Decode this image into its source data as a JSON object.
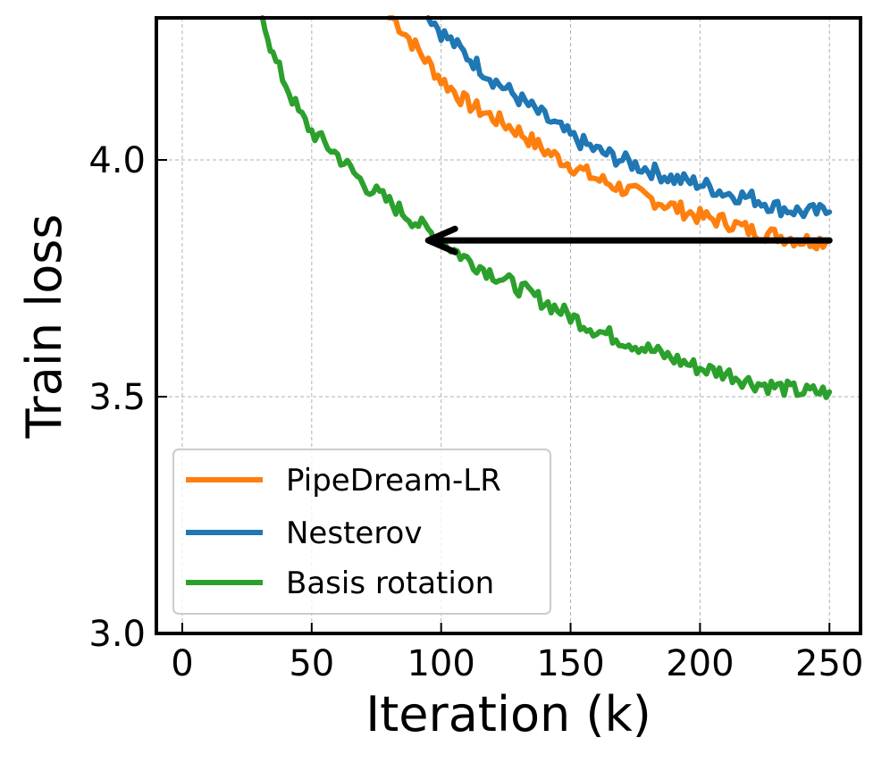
{
  "chart_data": {
    "type": "line",
    "xlabel": "Iteration (k)",
    "ylabel": "Train loss",
    "xlim": [
      -10,
      262
    ],
    "ylim": [
      3.0,
      4.3
    ],
    "xticks": [
      0,
      50,
      100,
      150,
      200,
      250
    ],
    "yticks": [
      3.0,
      3.5,
      4.0
    ],
    "xtick_labels": [
      "0",
      "50",
      "100",
      "150",
      "200",
      "250"
    ],
    "ytick_labels": [
      "3.0",
      "3.5",
      "4.0"
    ],
    "grid": true,
    "legend": "lower-left",
    "series": [
      {
        "name": "PipeDream-LR",
        "color": "#ff7f0e",
        "x": [
          80,
          90,
          100,
          110,
          120,
          130,
          140,
          150,
          160,
          170,
          180,
          190,
          200,
          210,
          220,
          230,
          240,
          250
        ],
        "y": [
          4.31,
          4.24,
          4.17,
          4.12,
          4.09,
          4.06,
          4.02,
          3.99,
          3.96,
          3.94,
          3.92,
          3.9,
          3.88,
          3.87,
          3.85,
          3.84,
          3.83,
          3.83
        ]
      },
      {
        "name": "Nesterov",
        "color": "#1f77b4",
        "x": [
          95,
          100,
          110,
          120,
          130,
          140,
          150,
          160,
          170,
          180,
          190,
          200,
          210,
          220,
          230,
          240,
          250
        ],
        "y": [
          4.31,
          4.27,
          4.22,
          4.17,
          4.13,
          4.09,
          4.05,
          4.02,
          4.0,
          3.98,
          3.96,
          3.95,
          3.93,
          3.92,
          3.9,
          3.89,
          3.89
        ]
      },
      {
        "name": "Basis rotation",
        "color": "#2ca02c",
        "x": [
          31,
          35,
          40,
          45,
          50,
          60,
          70,
          80,
          90,
          100,
          110,
          120,
          130,
          140,
          150,
          160,
          170,
          180,
          190,
          200,
          210,
          220,
          230,
          240,
          250
        ],
        "y": [
          4.31,
          4.22,
          4.16,
          4.1,
          4.06,
          4.01,
          3.95,
          3.91,
          3.87,
          3.83,
          3.79,
          3.76,
          3.73,
          3.7,
          3.67,
          3.64,
          3.62,
          3.6,
          3.58,
          3.56,
          3.55,
          3.53,
          3.52,
          3.51,
          3.51
        ]
      }
    ],
    "annotations": [
      {
        "type": "arrow",
        "from": [
          250,
          3.83
        ],
        "to": [
          95,
          3.83
        ],
        "color": "#000000"
      }
    ]
  }
}
